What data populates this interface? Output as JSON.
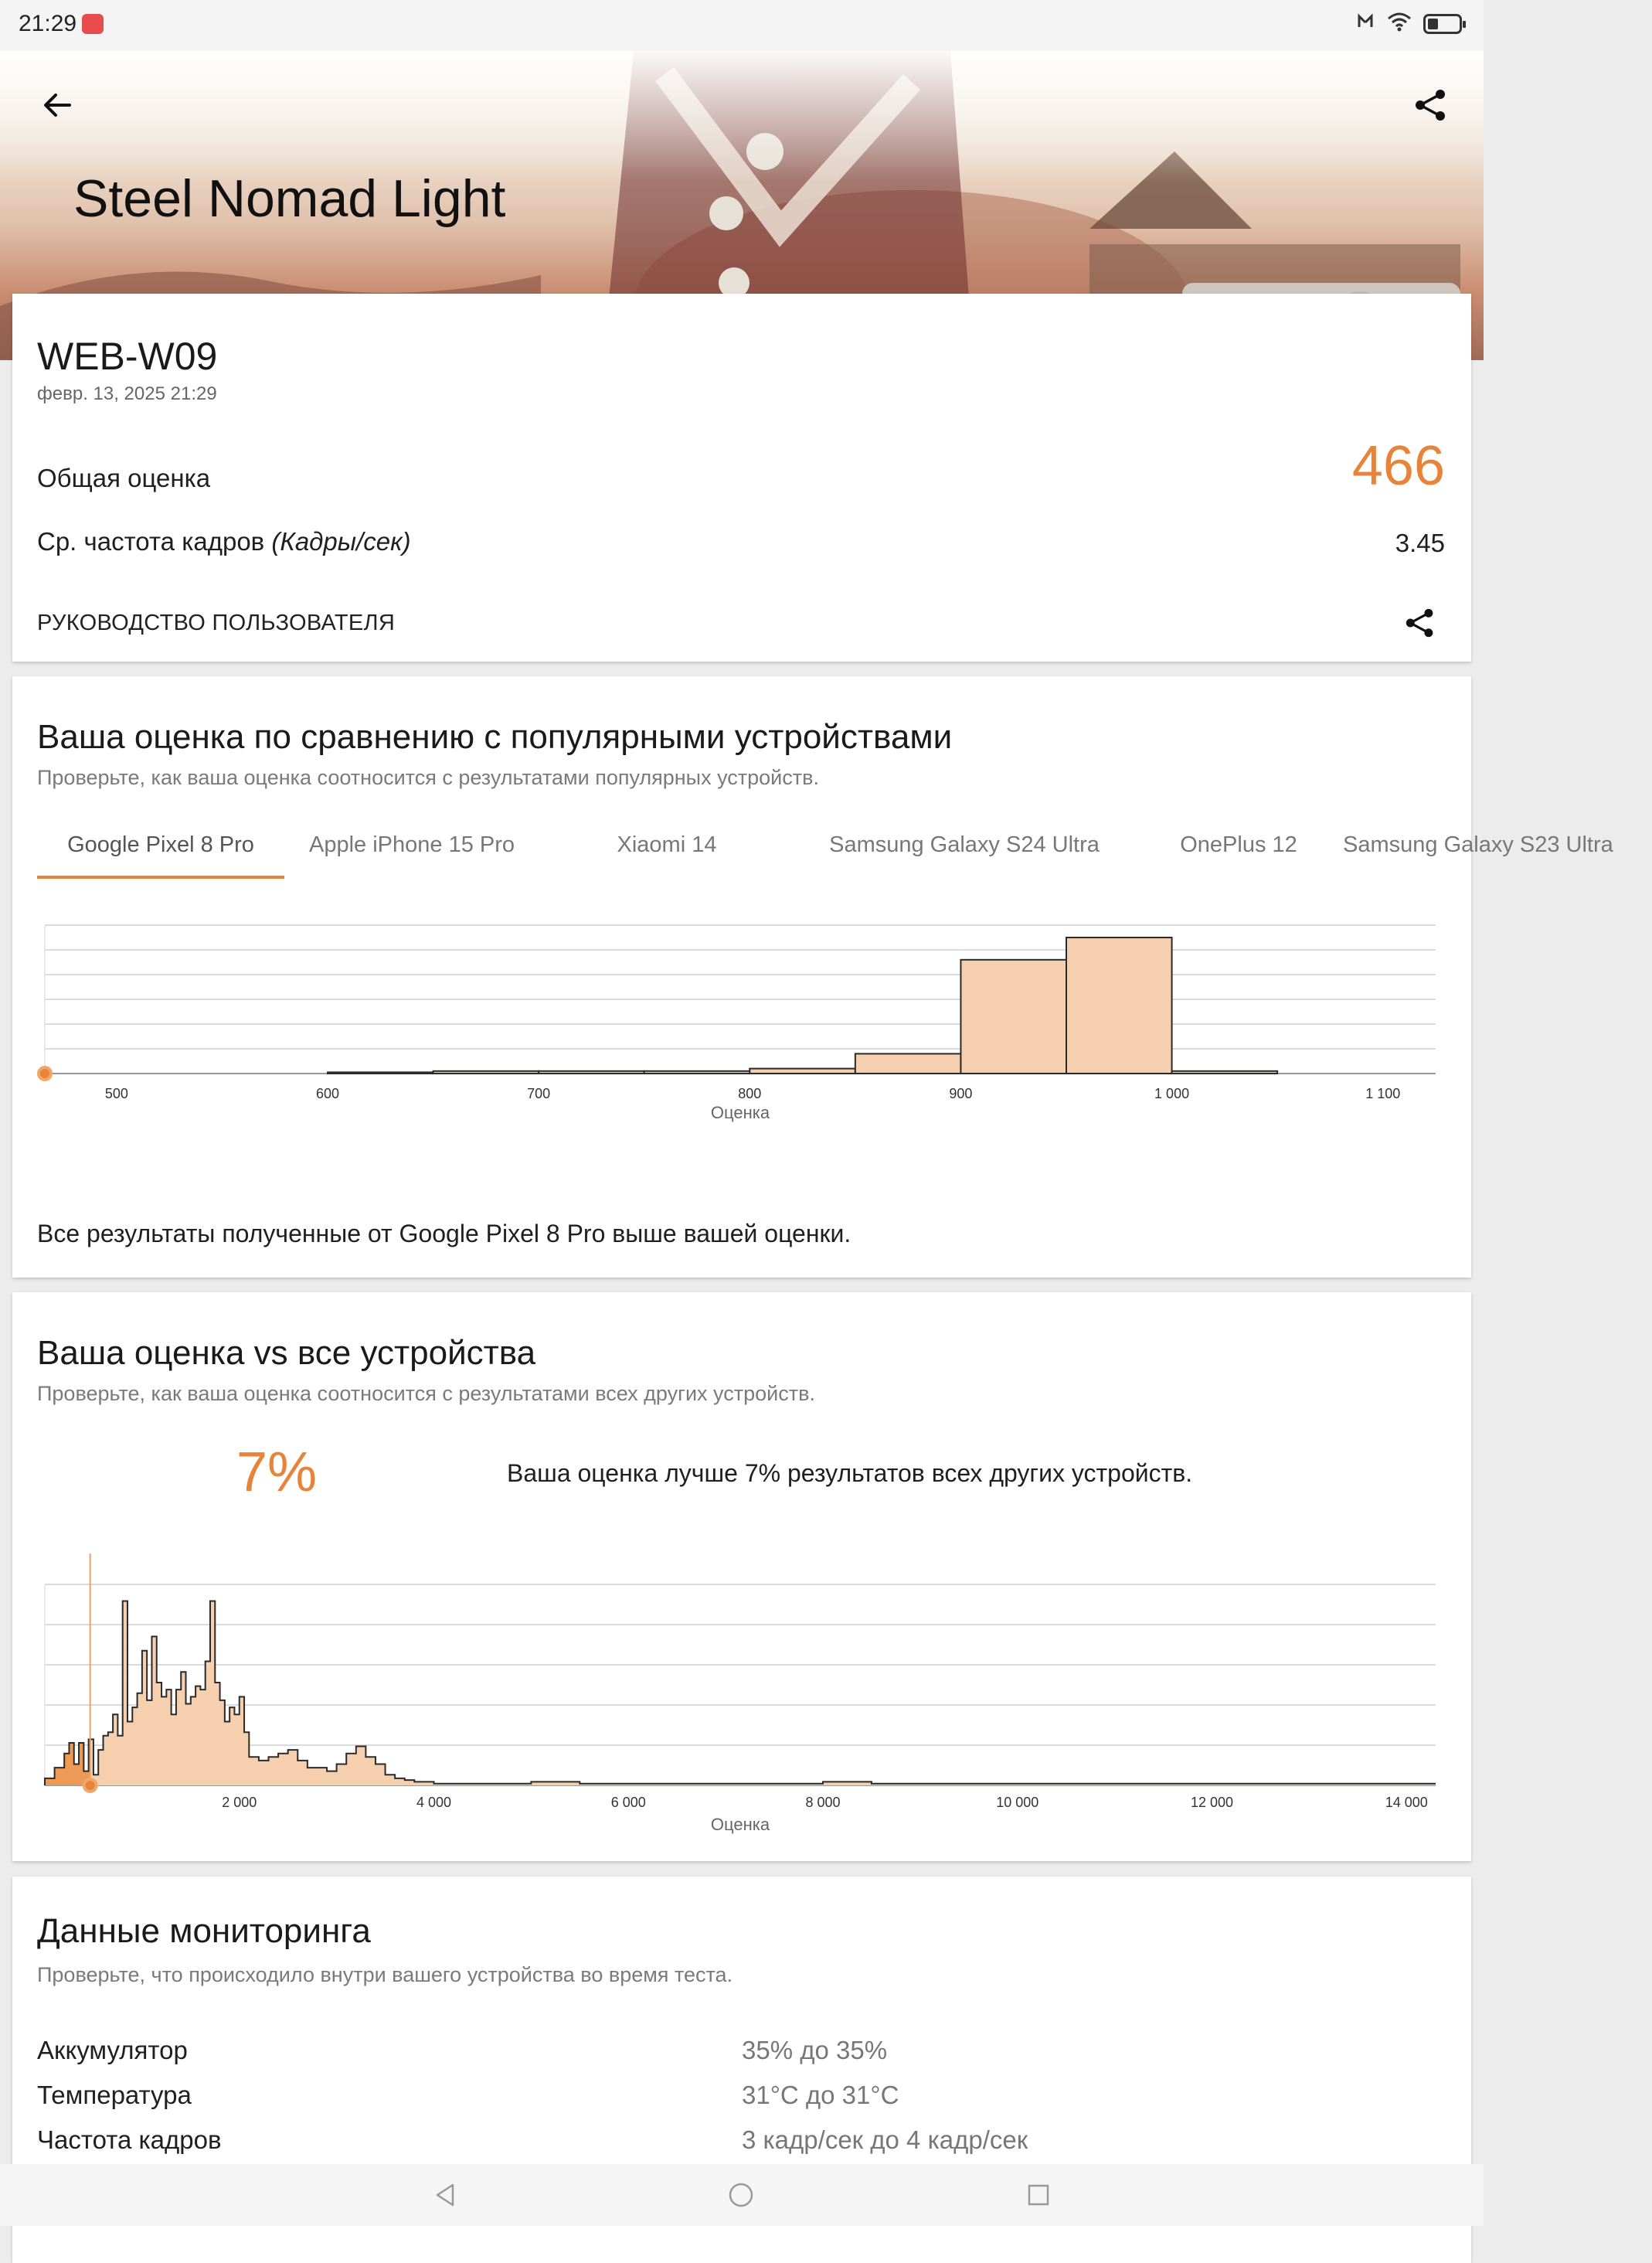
{
  "status_bar": {
    "time": "21:29",
    "battery_level": 0.35
  },
  "header": {
    "title": "Steel Nomad Light"
  },
  "result": {
    "device": "WEB-W09",
    "date": "февр. 13, 2025 21:29",
    "overall_label": "Общая оценка",
    "overall_score": "466",
    "fps_label": "Ср. частота кадров",
    "fps_unit": "(Кадры/сек)",
    "fps_value": "3.45",
    "guide_label": "РУКОВОДСТВО ПОЛЬЗОВАТЕЛЯ"
  },
  "compare": {
    "title": "Ваша оценка по сравнению с популярными устройствами",
    "subtitle": "Проверьте, как ваша оценка соотносится с результатами популярных устройств.",
    "tabs": [
      "Google Pixel 8 Pro",
      "Apple iPhone 15 Pro",
      "Xiaomi 14",
      "Samsung Galaxy S24 Ultra",
      "OnePlus 12",
      "Samsung Galaxy S23 Ultra"
    ],
    "active_tab": 0,
    "note": "Все результаты полученные от Google Pixel 8 Pro выше вашей оценки."
  },
  "all_devices": {
    "title": "Ваша оценка vs все устройства",
    "subtitle": "Проверьте, как ваша оценка соотносится с результатами всех других устройств.",
    "percent": "7%",
    "text": "Ваша оценка лучше 7% результатов всех других устройств."
  },
  "monitoring": {
    "title": "Данные мониторинга",
    "subtitle": "Проверьте, что происходило внутри вашего устройства во время теста.",
    "rows": [
      {
        "label": "Аккумулятор",
        "value": "35% до 35%"
      },
      {
        "label": "Температура",
        "value": "31°C до 31°C"
      },
      {
        "label": "Частота кадров",
        "value": "3 кадр/сек до 4 кадр/сек"
      }
    ]
  },
  "colors": {
    "accent": "#e8833a",
    "bar_fill": "#f5cfae",
    "bar_stroke": "#2a2a2a"
  },
  "chart_data": [
    {
      "type": "bar",
      "xlabel": "Оценка",
      "xticks": [
        "500",
        "600",
        "700",
        "800",
        "900",
        "1 000",
        "1 100"
      ],
      "xlim": [
        466,
        1125
      ],
      "bin_width": 50,
      "categories": [
        625,
        675,
        725,
        775,
        825,
        875,
        925,
        975,
        1025
      ],
      "values": [
        0.5,
        1,
        1,
        1,
        2,
        8,
        46,
        55,
        1
      ],
      "ylim": [
        0,
        60
      ],
      "marker": {
        "x": 466
      }
    },
    {
      "type": "area",
      "xlabel": "Оценка",
      "xticks": [
        "2 000",
        "4 000",
        "6 000",
        "8 000",
        "10 000",
        "12 000",
        "14 000"
      ],
      "xlim": [
        0,
        14300
      ],
      "ylim": [
        0,
        58
      ],
      "marker": {
        "x": 466,
        "label": "7%"
      },
      "x": [
        0,
        100,
        200,
        250,
        300,
        350,
        400,
        450,
        500,
        550,
        600,
        650,
        700,
        750,
        800,
        850,
        900,
        950,
        1000,
        1050,
        1100,
        1150,
        1200,
        1250,
        1300,
        1350,
        1400,
        1450,
        1500,
        1550,
        1600,
        1650,
        1700,
        1750,
        1800,
        1850,
        1900,
        1950,
        2000,
        2050,
        2100,
        2200,
        2300,
        2400,
        2500,
        2600,
        2700,
        2800,
        2900,
        3000,
        3100,
        3200,
        3300,
        3400,
        3500,
        3600,
        3700,
        3800,
        3900,
        4000,
        4200,
        4400,
        4600,
        4800,
        5000,
        5500,
        6000,
        6500,
        7000,
        7500,
        8000,
        8500,
        9000,
        10000,
        11000,
        12000,
        12500,
        13000,
        14000,
        14300
      ],
      "y": [
        2,
        5,
        9,
        12,
        6,
        12,
        4,
        13,
        3,
        10,
        14,
        15,
        20,
        14,
        52,
        18,
        22,
        26,
        38,
        24,
        42,
        29,
        25,
        27,
        20,
        27,
        32,
        23,
        25,
        28,
        27,
        35,
        52,
        29,
        24,
        18,
        22,
        20,
        25,
        15,
        8,
        7,
        8,
        9,
        10,
        7,
        5,
        5,
        4,
        6,
        9,
        11,
        8,
        6,
        3,
        2,
        1.5,
        1,
        1,
        0.5,
        0.5,
        0.5,
        0.5,
        0.5,
        1,
        0.5,
        0.5,
        0.5,
        0.5,
        0.5,
        1,
        0.5,
        0.5,
        0.5,
        0.5,
        0.5,
        0.5,
        0.5,
        0.5,
        0.5
      ]
    }
  ]
}
